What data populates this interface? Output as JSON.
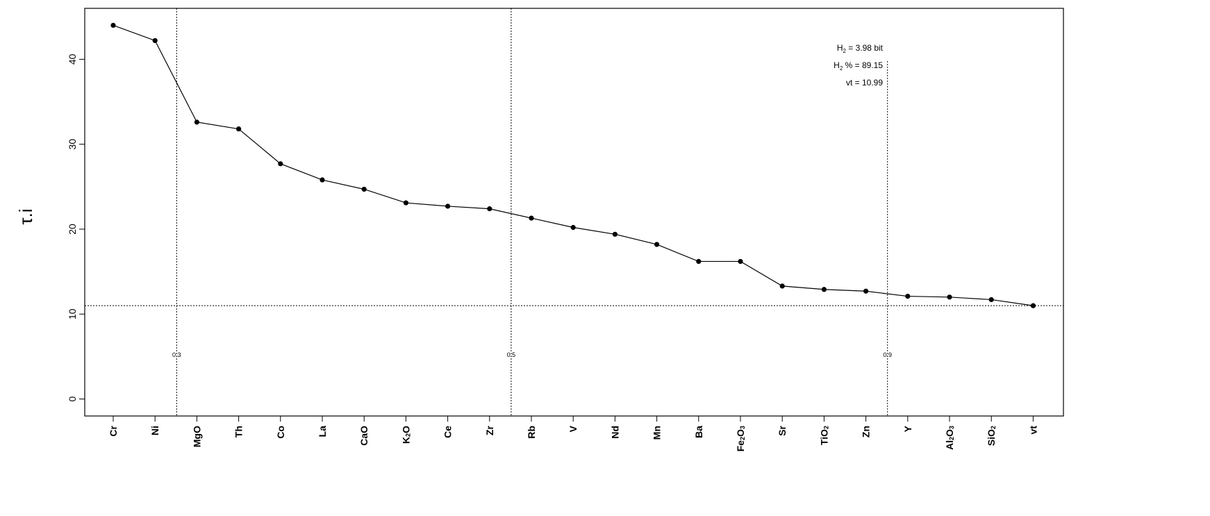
{
  "chart_data": {
    "type": "line",
    "ylabel": "τ.i",
    "ylim": [
      -2,
      46
    ],
    "yticks": [
      0,
      10,
      20,
      30,
      40
    ],
    "categories": [
      "Cr",
      "Ni",
      "MgO",
      "Th",
      "Co",
      "La",
      "CaO",
      "K2O",
      "Ce",
      "Zr",
      "Rb",
      "V",
      "Nd",
      "Mn",
      "Ba",
      "Fe2O3",
      "Sr",
      "TiO2",
      "Zn",
      "Y",
      "Al2O3",
      "SiO2",
      "vt"
    ],
    "category_labels": [
      {
        "main": "Cr"
      },
      {
        "main": "Ni"
      },
      {
        "main": "MgO"
      },
      {
        "main": "Th"
      },
      {
        "main": "Co"
      },
      {
        "main": "La"
      },
      {
        "main": "CaO"
      },
      {
        "main": "K",
        "sub": "2",
        "tail": "O"
      },
      {
        "main": "Ce"
      },
      {
        "main": "Zr"
      },
      {
        "main": "Rb"
      },
      {
        "main": "V"
      },
      {
        "main": "Nd"
      },
      {
        "main": "Mn"
      },
      {
        "main": "Ba"
      },
      {
        "main": "Fe",
        "sub": "2",
        "tail": "O",
        "sub2": "3"
      },
      {
        "main": "Sr"
      },
      {
        "main": "TiO",
        "sub": "2"
      },
      {
        "main": "Zn"
      },
      {
        "main": "Y"
      },
      {
        "main": "Al",
        "sub": "2",
        "tail": "O",
        "sub2": "3"
      },
      {
        "main": "SiO",
        "sub": "2"
      },
      {
        "main": "vt"
      }
    ],
    "values": [
      44.0,
      42.2,
      32.6,
      31.8,
      27.7,
      25.8,
      24.7,
      23.1,
      22.7,
      22.4,
      21.3,
      20.2,
      19.4,
      18.2,
      16.2,
      16.2,
      13.3,
      12.9,
      12.7,
      12.1,
      12.0,
      11.7,
      10.99
    ],
    "hline": 10.99,
    "vlines": [
      {
        "label": "0.3",
        "after_index": 1
      },
      {
        "label": "0.5",
        "after_index": 9
      },
      {
        "label": "0.9",
        "after_index": 18
      }
    ],
    "annotations": [
      {
        "main": "H",
        "sub": "2",
        "tail": " = 3.98 bit"
      },
      {
        "main": "H",
        "sub": "2",
        "tail": " % = 89.15"
      },
      {
        "main": "",
        "sub": "",
        "tail": "vt = 10.99"
      }
    ],
    "grid": false
  }
}
